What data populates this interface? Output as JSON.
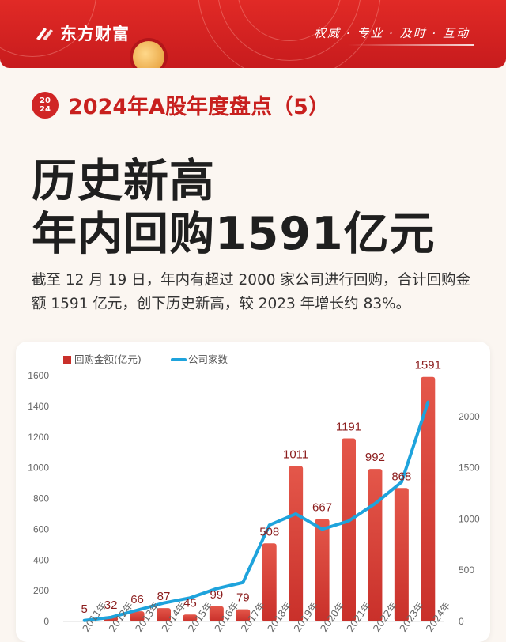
{
  "brand": {
    "name": "东方财富",
    "slogan": "权威 · 专业 · 及时 · 互动"
  },
  "badge": {
    "year_top": "20",
    "year_bottom": "24"
  },
  "subtitle": "2024年A股年度盘点（5）",
  "headline": {
    "line1": "历史新高",
    "line2": "年内回购1591亿元"
  },
  "description": "截至 12 月 19 日，年内有超过 2000 家公司进行回购，合计回购金额 1591 亿元，创下历史新高，较 2023 年增长约 83%。",
  "colors": {
    "brand_red": "#d02525",
    "bar_top": "#e4574a",
    "bar_bottom": "#c9302a",
    "line": "#1ea3dc"
  },
  "chart_data": {
    "type": "bar",
    "categories": [
      "2011年",
      "2012年",
      "2013年",
      "2014年",
      "2015年",
      "2016年",
      "2017年",
      "2018年",
      "2019年",
      "2020年",
      "2021年",
      "2022年",
      "2023年",
      "2024年"
    ],
    "series": [
      {
        "name": "回购金额(亿元)",
        "type": "bar",
        "axis": "left",
        "values": [
          5,
          32,
          66,
          87,
          45,
          99,
          79,
          508,
          1011,
          667,
          1191,
          992,
          868,
          1591
        ],
        "labels": [
          "5",
          "32",
          "66",
          "87",
          "45",
          "99",
          "79",
          "508",
          "1011",
          "667",
          "1191",
          "992",
          "868",
          "1591"
        ]
      },
      {
        "name": "公司家数",
        "type": "line",
        "axis": "right",
        "values": [
          10,
          40,
          110,
          180,
          230,
          320,
          380,
          940,
          1050,
          900,
          980,
          1150,
          1360,
          2140
        ]
      }
    ],
    "y_left": {
      "min": 0,
      "max": 1600,
      "ticks": [
        "0",
        "200",
        "400",
        "600",
        "800",
        "1000",
        "1200",
        "1400",
        "1600"
      ]
    },
    "y_right": {
      "min": 0,
      "max": 2400,
      "ticks": [
        "0",
        "500",
        "1000",
        "1500",
        "2000"
      ]
    },
    "legend": "top-left",
    "grid": false
  }
}
